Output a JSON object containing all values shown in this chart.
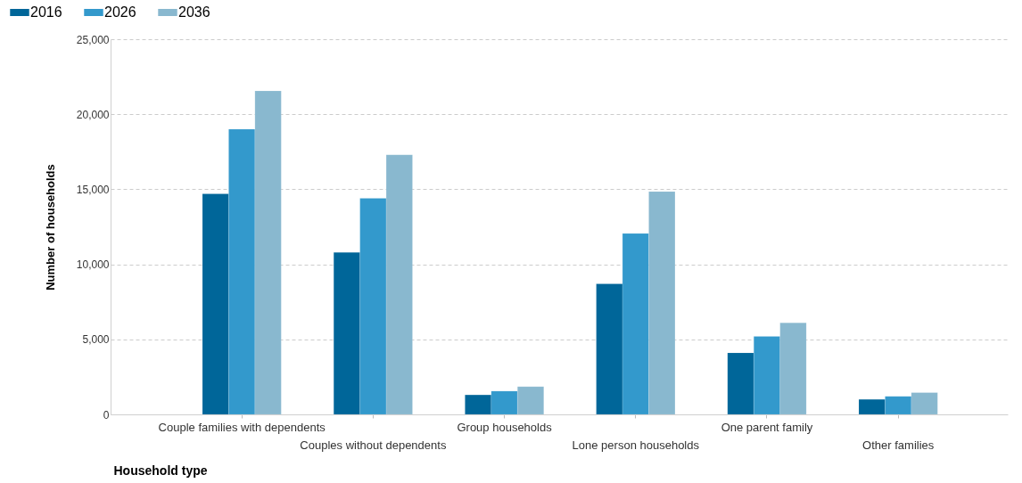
{
  "chart_data": {
    "type": "bar",
    "xlabel": "Household type",
    "ylabel": "Number of households",
    "categories": [
      "Couple families with dependents",
      "Couples without dependents",
      "Group households",
      "Lone person households",
      "One parent family",
      "Other families"
    ],
    "series": [
      {
        "name": "2016",
        "color": "#006699",
        "values": [
          14700,
          10800,
          1300,
          8700,
          4100,
          1000
        ]
      },
      {
        "name": "2026",
        "color": "#3399cc",
        "values": [
          19000,
          14400,
          1550,
          12050,
          5200,
          1200
        ]
      },
      {
        "name": "2036",
        "color": "#89b8cf",
        "values": [
          21550,
          17300,
          1850,
          14850,
          6100,
          1450
        ]
      }
    ],
    "ylim": [
      0,
      25000
    ],
    "yticks": [
      0,
      {
        "value": 5000,
        "label": "5,000"
      },
      {
        "value": 10000,
        "label": "10,000"
      },
      {
        "value": 15000,
        "label": "15,000"
      },
      {
        "value": 20000,
        "label": "20,000"
      },
      {
        "value": 25000,
        "label": "25,000"
      }
    ],
    "grid": "y",
    "legend": "top left"
  }
}
